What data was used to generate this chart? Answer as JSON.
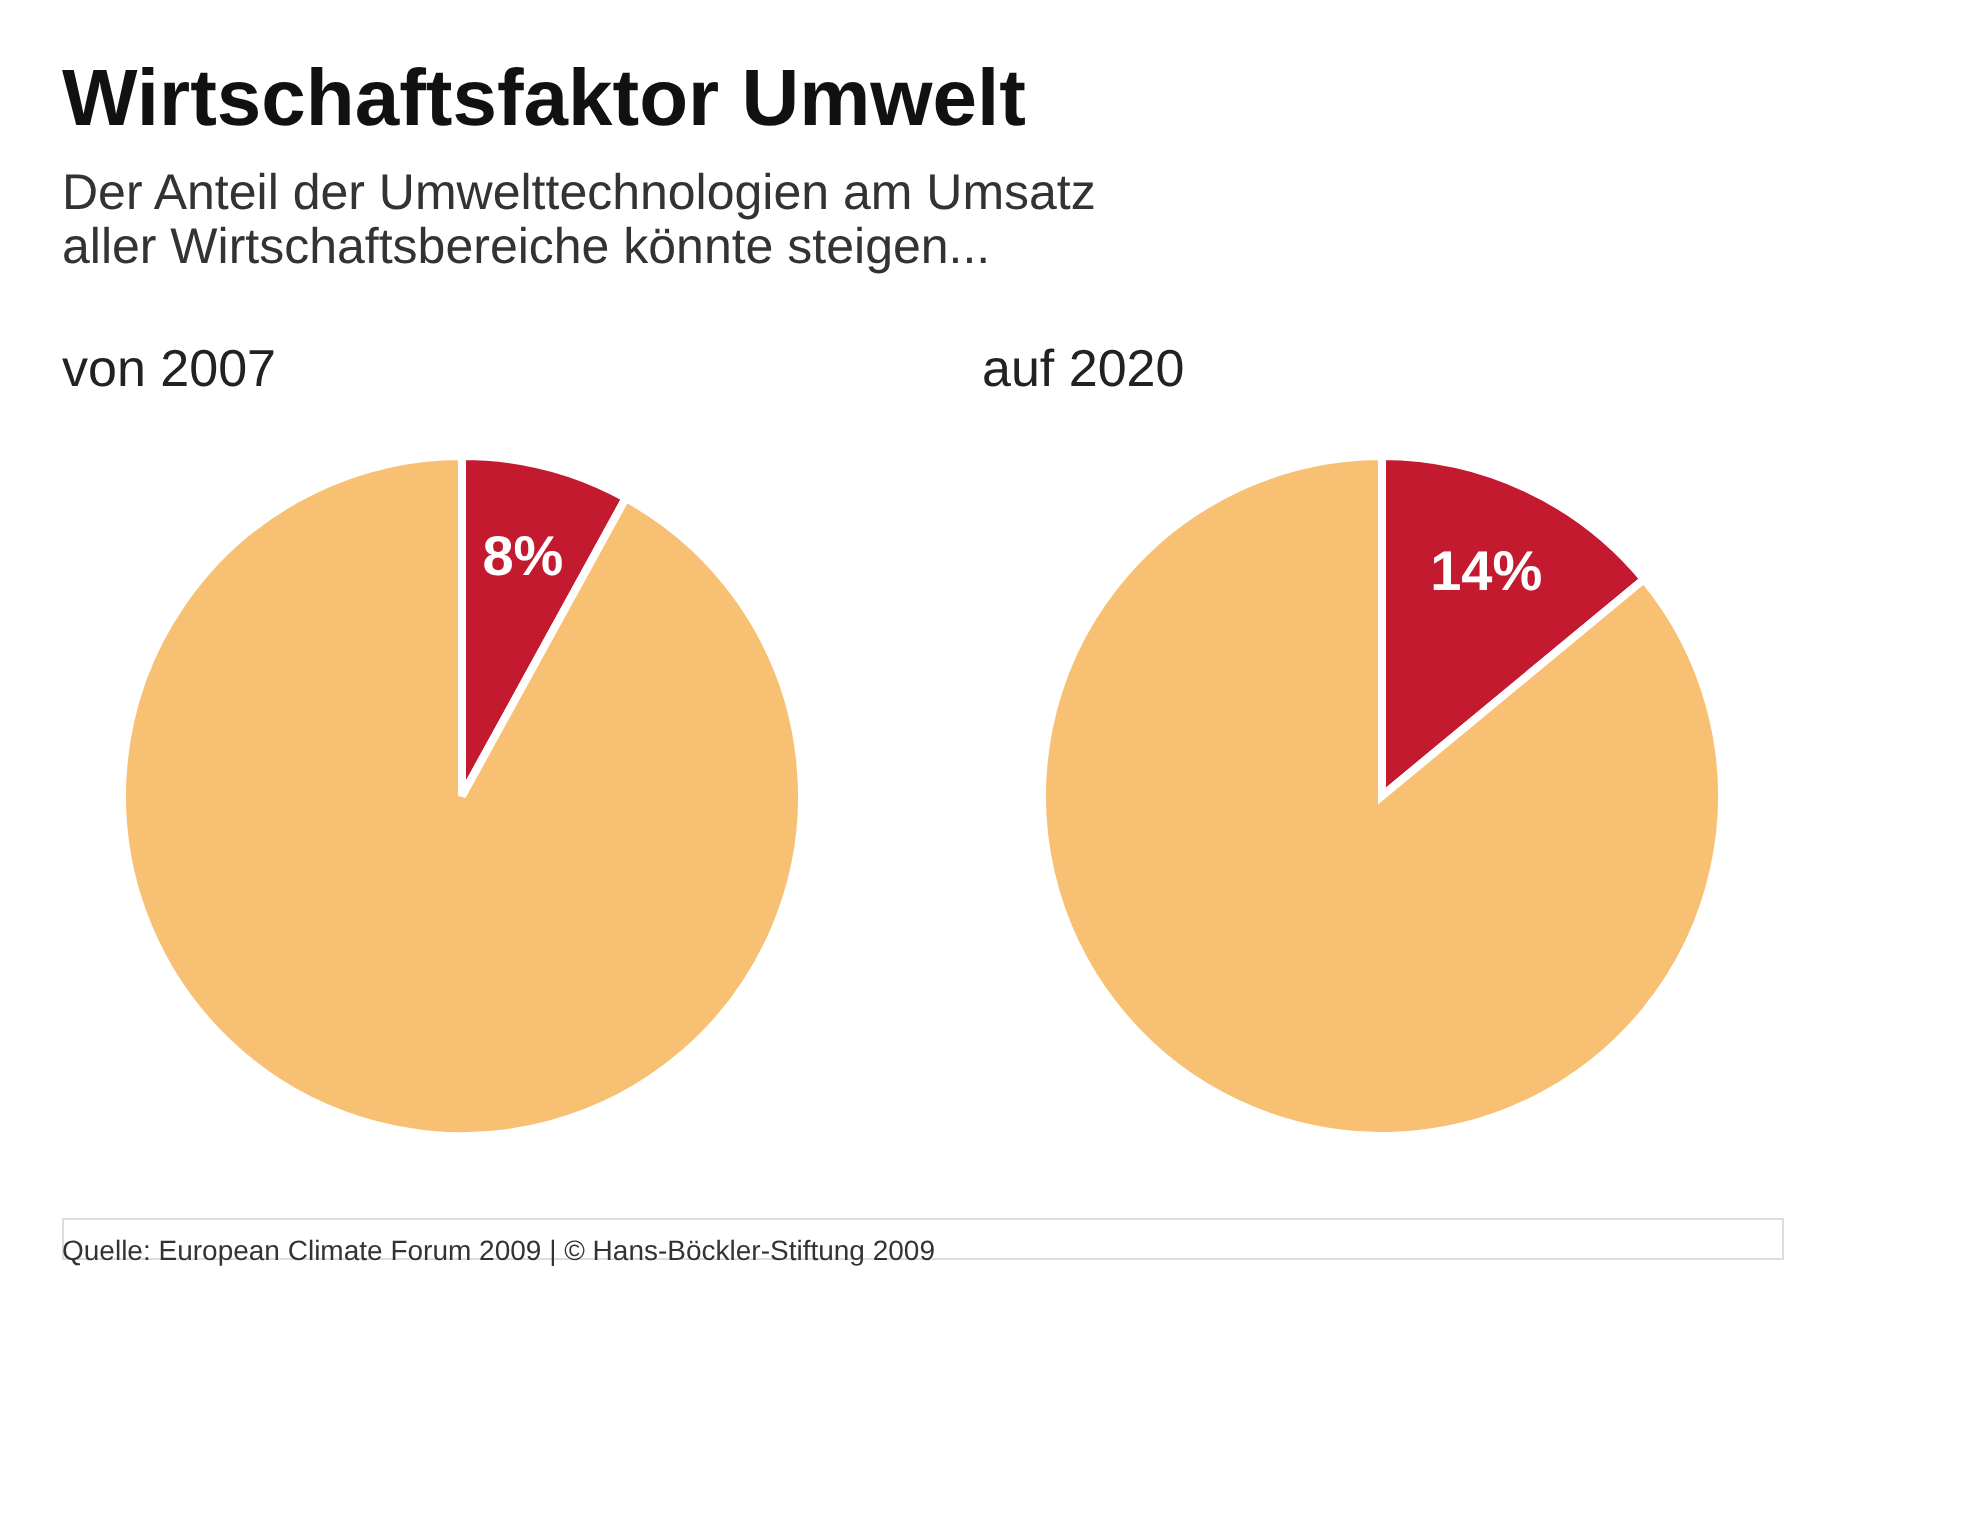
{
  "chart_data": [
    {
      "type": "other",
      "title": "Wirtschaftsfaktor Umwelt",
      "subtitle": "Der Anteil der Umwelttechnologien am Umsatz\naller Wirtschaftsbereiche könnte steigen...",
      "annotations": [
        "Quelle: European Climate Forum 2009 | © Hans-Böckler-Stiftung 2009"
      ]
    },
    {
      "type": "pie",
      "title": "von 2007",
      "categories": [
        null,
        null
      ],
      "values": [
        8,
        92
      ],
      "colors": [
        "#c41a30",
        "#f8c072"
      ],
      "value_labels": [
        "8%",
        null
      ]
    },
    {
      "type": "pie",
      "title": "auf 2020",
      "categories": [
        null,
        null
      ],
      "values": [
        14,
        86
      ],
      "colors": [
        "#c41a30",
        "#f8c072"
      ],
      "value_labels": [
        "14%",
        null
      ]
    }
  ]
}
